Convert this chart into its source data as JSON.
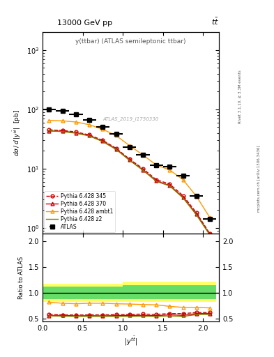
{
  "title_top": "13000 GeV pp",
  "title_top_right": "tt̅",
  "plot_label": "y(ttbar) (ATLAS semileptonic ttbar)",
  "watermark": "ATLAS_2019_I1750330",
  "ylabel_main": "dσ / d |y$^{t\\bar{t}}$| [pb]",
  "ylabel_ratio": "Ratio to ATLAS",
  "right_label_top": "Rivet 3.1.10, ≥ 3.3M events",
  "right_label_bottom": "mcplots.cern.ch [arXiv:1306.3436]",
  "atlas_x": [
    0.083,
    0.25,
    0.417,
    0.583,
    0.75,
    0.917,
    1.083,
    1.25,
    1.417,
    1.583,
    1.75,
    1.917,
    2.083
  ],
  "atlas_y": [
    100.0,
    95.0,
    82.0,
    66.0,
    50.0,
    38.0,
    23.0,
    17.0,
    11.5,
    10.8,
    7.5,
    3.5,
    1.4
  ],
  "atlas_xerr": [
    0.083,
    0.083,
    0.083,
    0.083,
    0.083,
    0.083,
    0.083,
    0.083,
    0.083,
    0.083,
    0.083,
    0.083,
    0.083
  ],
  "py345_y": [
    45.0,
    44.0,
    41.5,
    37.0,
    30.0,
    22.0,
    14.5,
    10.0,
    6.5,
    5.5,
    3.5,
    1.8,
    0.8
  ],
  "py345_color": "#cc0000",
  "py345_linestyle": "--",
  "py345_marker": "o",
  "py345_label": "Pythia 6.428 345",
  "py370_y": [
    43.0,
    43.0,
    40.0,
    36.0,
    29.0,
    21.5,
    14.0,
    9.5,
    6.2,
    5.2,
    3.3,
    1.7,
    0.78
  ],
  "py370_color": "#cc0000",
  "py370_linestyle": "-",
  "py370_marker": "^",
  "py370_label": "Pythia 6.428 370",
  "pyambt1_y": [
    65.0,
    64.0,
    61.0,
    55.0,
    46.0,
    36.0,
    24.5,
    17.0,
    11.5,
    9.5,
    6.5,
    3.4,
    1.5
  ],
  "pyambt1_color": "#ff9900",
  "pyambt1_linestyle": "-",
  "pyambt1_marker": "^",
  "pyambt1_label": "Pythia 6.428 ambt1",
  "pyz2_y": [
    43.5,
    42.0,
    39.5,
    35.5,
    28.5,
    21.0,
    13.8,
    9.4,
    6.1,
    5.1,
    3.2,
    1.65,
    0.76
  ],
  "pyz2_color": "#808000",
  "pyz2_linestyle": "-",
  "pyz2_label": "Pythia 6.428 z2",
  "ratio_green_lo": [
    0.88,
    0.88,
    0.88,
    0.88,
    0.88,
    0.88,
    0.88,
    0.88,
    0.88,
    0.88,
    0.88,
    0.88,
    0.88
  ],
  "ratio_green_hi": [
    1.12,
    1.12,
    1.12,
    1.12,
    1.12,
    1.12,
    1.15,
    1.15,
    1.15,
    1.15,
    1.15,
    1.15,
    1.15
  ],
  "ratio_yellow_lo": [
    0.82,
    0.82,
    0.82,
    0.82,
    0.82,
    0.82,
    0.82,
    0.82,
    0.82,
    0.82,
    0.82,
    0.82,
    0.82
  ],
  "ratio_yellow_hi": [
    1.18,
    1.18,
    1.18,
    1.18,
    1.18,
    1.18,
    1.22,
    1.22,
    1.22,
    1.22,
    1.22,
    1.22,
    1.22
  ],
  "ratio_py345": [
    0.585,
    0.575,
    0.572,
    0.575,
    0.575,
    0.58,
    0.585,
    0.59,
    0.585,
    0.6,
    0.6,
    0.62,
    0.62
  ],
  "ratio_py370": [
    0.56,
    0.565,
    0.555,
    0.558,
    0.555,
    0.56,
    0.565,
    0.565,
    0.56,
    0.575,
    0.565,
    0.6,
    0.6
  ],
  "ratio_pyambt1": [
    0.82,
    0.8,
    0.79,
    0.8,
    0.8,
    0.79,
    0.785,
    0.775,
    0.77,
    0.74,
    0.72,
    0.72,
    0.71
  ],
  "ratio_pyz2": [
    0.555,
    0.55,
    0.545,
    0.545,
    0.545,
    0.545,
    0.545,
    0.55,
    0.545,
    0.555,
    0.545,
    0.58,
    0.58
  ],
  "xlim": [
    0,
    2.2
  ],
  "ylim_main": [
    0.8,
    2000
  ],
  "ylim_ratio": [
    0.45,
    2.15
  ],
  "ratio_yticks": [
    0.5,
    1.0,
    1.5,
    2.0
  ]
}
